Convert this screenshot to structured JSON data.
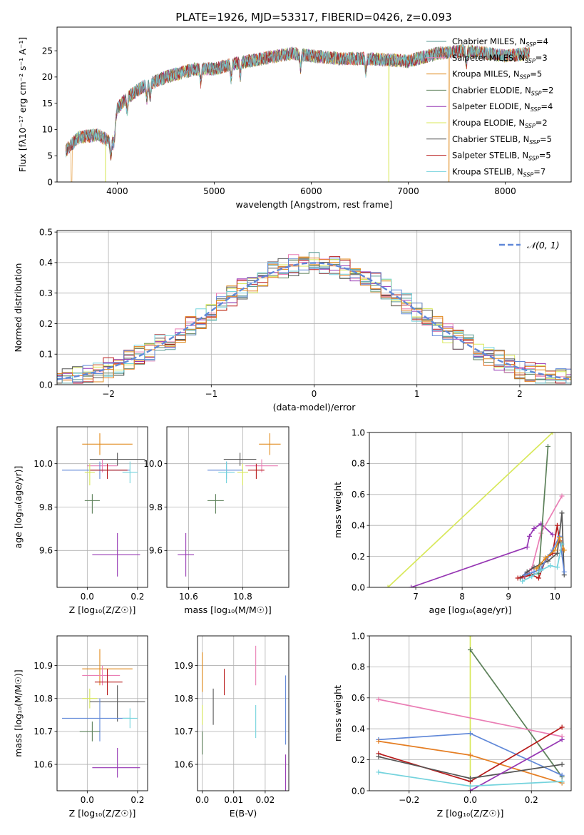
{
  "figure": {
    "title": "PLATE=1926, MJD=53317, FIBERID=0426, z=0.093"
  },
  "colors": {
    "chabrier_miles": "#5a9a93",
    "salpeter_miles": "#ea7eb5",
    "kroupa_miles": "#e08a1b",
    "chabrier_elodie": "#5b7f58",
    "salpeter_elodie": "#9636b3",
    "kroupa_elodie": "#d8e85a",
    "chabrier_stelib": "#555555",
    "salpeter_stelib": "#b81b1b",
    "kroupa_stelib": "#74d3dd",
    "blue": "#6088d8",
    "orange": "#e57e23"
  },
  "chart_data": [
    {
      "id": "spectrum",
      "type": "line",
      "xlabel": "wavelength [Angstrom, rest frame]",
      "ylabel": "Flux [fλ10⁻¹⁷ erg cm⁻² s⁻¹ A⁻¹]",
      "xlim": [
        3380,
        8680
      ],
      "ylim": [
        0,
        29.5
      ],
      "xticks": [
        4000,
        5000,
        6000,
        7000,
        8000
      ],
      "yticks": [
        0,
        5,
        10,
        15,
        20,
        25
      ],
      "legend": [
        {
          "base": "Chabrier MILES, N",
          "sub": "SSP",
          "tail": "=4"
        },
        {
          "base": "Salpeter MILES, N",
          "sub": "SSP",
          "tail": "=3"
        },
        {
          "base": "Kroupa MILES, N",
          "sub": "SSP",
          "tail": "=5"
        },
        {
          "base": "Chabrier ELODIE, N",
          "sub": "SSP",
          "tail": "=2"
        },
        {
          "base": "Salpeter ELODIE, N",
          "sub": "SSP",
          "tail": "=4"
        },
        {
          "base": "Kroupa ELODIE, N",
          "sub": "SSP",
          "tail": "=2"
        },
        {
          "base": "Chabrier STELIB, N",
          "sub": "SSP",
          "tail": "=5"
        },
        {
          "base": "Salpeter STELIB, N",
          "sub": "SSP",
          "tail": "=5"
        },
        {
          "base": "Kroupa STELIB, N",
          "sub": "SSP",
          "tail": "=7"
        }
      ],
      "legend_placement": "upper-right",
      "continuum": [
        [
          3470,
          6.0
        ],
        [
          3600,
          8.5
        ],
        [
          3800,
          9.0
        ],
        [
          3950,
          7.5
        ],
        [
          4000,
          14.0
        ],
        [
          4100,
          16.0
        ],
        [
          4250,
          18.0
        ],
        [
          4500,
          20.0
        ],
        [
          4800,
          21.5
        ],
        [
          5000,
          21.5
        ],
        [
          5200,
          22.5
        ],
        [
          5500,
          23.5
        ],
        [
          5800,
          24.5
        ],
        [
          6000,
          24.0
        ],
        [
          6300,
          23.5
        ],
        [
          6600,
          23.5
        ],
        [
          7000,
          23.0
        ],
        [
          7300,
          24.5
        ],
        [
          7600,
          25.0
        ],
        [
          8000,
          24.0
        ],
        [
          8250,
          24.5
        ]
      ]
    },
    {
      "id": "residuals",
      "type": "histogram",
      "xlabel": "(data-model)/error",
      "ylabel": "Normed distribution",
      "xlim": [
        -2.5,
        2.5
      ],
      "ylim": [
        0,
        0.505
      ],
      "xticks": [
        -2,
        -1,
        0,
        1,
        2
      ],
      "yticks": [
        0.0,
        0.1,
        0.2,
        0.3,
        0.4,
        0.5
      ],
      "legend": [
        "𝒩(0, 1)"
      ],
      "legend_placement": "upper-right",
      "grid": true,
      "bin_width": 0.1
    },
    {
      "id": "age-vs-Z",
      "type": "scatter",
      "xlabel": "Z [log₁₀(Z/Z☉)]",
      "ylabel": "age  [log₁₀(age/yr)]",
      "xlim": [
        -0.12,
        0.24
      ],
      "ylim": [
        9.43,
        10.17
      ],
      "xticks": [
        0.0,
        0.2
      ],
      "yticks": [
        9.6,
        9.8,
        10.0
      ],
      "grid": true,
      "points": [
        {
          "series": "kroupa_miles",
          "x": 0.05,
          "y": 10.09,
          "xe": [
            0.07,
            0.13
          ],
          "ye": [
            0.05,
            0.05
          ]
        },
        {
          "series": "chabrier_stelib",
          "x": 0.12,
          "y": 10.02,
          "xe": [
            0.11,
            0.11
          ],
          "ye": [
            0.03,
            0.03
          ]
        },
        {
          "series": "salpeter_miles",
          "x": 0.06,
          "y": 9.99,
          "xe": [
            0.06,
            0.06
          ],
          "ye": [
            0.03,
            0.03
          ]
        },
        {
          "series": "blue",
          "x": 0.05,
          "y": 9.97,
          "xe": [
            0.15,
            0.12
          ],
          "ye": [
            0.04,
            0.04
          ]
        },
        {
          "series": "salpeter_stelib",
          "x": 0.08,
          "y": 9.97,
          "xe": [
            0.07,
            0.08
          ],
          "ye": [
            0.04,
            0.03
          ]
        },
        {
          "series": "kroupa_elodie",
          "x": 0.01,
          "y": 9.96,
          "xe": [
            0.02,
            0.02
          ],
          "ye": [
            0.06,
            0.04
          ]
        },
        {
          "series": "kroupa_stelib",
          "x": 0.17,
          "y": 9.96,
          "xe": [
            0.03,
            0.03
          ],
          "ye": [
            0.05,
            0.05
          ]
        },
        {
          "series": "chabrier_elodie",
          "x": 0.02,
          "y": 9.83,
          "xe": [
            0.03,
            0.03
          ],
          "ye": [
            0.06,
            0.03
          ]
        },
        {
          "series": "salpeter_elodie",
          "x": 0.12,
          "y": 9.58,
          "xe": [
            0.1,
            0.09
          ],
          "ye": [
            0.1,
            0.1
          ]
        }
      ]
    },
    {
      "id": "age-vs-mass",
      "type": "scatter",
      "xlabel": "mass [log₁₀(M/M☉)]",
      "ylabel": "",
      "xlim": [
        10.52,
        10.97
      ],
      "ylim": [
        9.43,
        10.17
      ],
      "xticks": [
        10.6,
        10.8
      ],
      "yticks": [
        9.6,
        9.8,
        10.0
      ],
      "grid": true,
      "points": [
        {
          "series": "kroupa_miles",
          "x": 10.9,
          "y": 10.09,
          "xe": [
            0.04,
            0.04
          ],
          "ye": [
            0.05,
            0.05
          ]
        },
        {
          "series": "chabrier_stelib",
          "x": 10.79,
          "y": 10.02,
          "xe": [
            0.06,
            0.06
          ],
          "ye": [
            0.03,
            0.03
          ]
        },
        {
          "series": "salpeter_miles",
          "x": 10.87,
          "y": 9.99,
          "xe": [
            0.06,
            0.06
          ],
          "ye": [
            0.03,
            0.03
          ]
        },
        {
          "series": "blue",
          "x": 10.74,
          "y": 9.97,
          "xe": [
            0.07,
            0.06
          ],
          "ye": [
            0.04,
            0.04
          ]
        },
        {
          "series": "salpeter_stelib",
          "x": 10.85,
          "y": 9.97,
          "xe": [
            0.03,
            0.03
          ],
          "ye": [
            0.04,
            0.03
          ]
        },
        {
          "series": "kroupa_elodie",
          "x": 10.8,
          "y": 9.96,
          "xe": [
            0.02,
            0.02
          ],
          "ye": [
            0.06,
            0.04
          ]
        },
        {
          "series": "kroupa_stelib",
          "x": 10.74,
          "y": 9.96,
          "xe": [
            0.03,
            0.03
          ],
          "ye": [
            0.05,
            0.05
          ]
        },
        {
          "series": "chabrier_elodie",
          "x": 10.7,
          "y": 9.83,
          "xe": [
            0.03,
            0.03
          ],
          "ye": [
            0.06,
            0.03
          ]
        },
        {
          "series": "salpeter_elodie",
          "x": 10.59,
          "y": 9.58,
          "xe": [
            0.03,
            0.03
          ],
          "ye": [
            0.1,
            0.1
          ]
        }
      ]
    },
    {
      "id": "weight-vs-age",
      "type": "line",
      "xlabel": "age  [log₁₀(age/yr)]",
      "ylabel": "mass weight",
      "xlim": [
        6.0,
        10.35
      ],
      "ylim": [
        0.0,
        1.0
      ],
      "xticks": [
        7,
        8,
        9,
        10
      ],
      "yticks": [
        0.0,
        0.2,
        0.4,
        0.6,
        0.8,
        1.0
      ],
      "grid": true,
      "series": [
        {
          "series": "kroupa_elodie",
          "x": [
            6.4,
            9.95
          ],
          "y": [
            0.0,
            1.0
          ]
        },
        {
          "series": "salpeter_elodie",
          "x": [
            6.9,
            9.4,
            9.45,
            9.55,
            9.7,
            9.95
          ],
          "y": [
            0.0,
            0.26,
            0.33,
            0.38,
            0.41,
            0.34
          ]
        },
        {
          "series": "salpeter_miles",
          "x": [
            9.3,
            9.5,
            9.7,
            10.15
          ],
          "y": [
            0.06,
            0.12,
            0.35,
            0.59
          ]
        },
        {
          "series": "chabrier_elodie",
          "x": [
            9.45,
            9.65,
            9.85
          ],
          "y": [
            0.08,
            0.09,
            0.91
          ]
        },
        {
          "series": "chabrier_stelib",
          "x": [
            9.25,
            9.4,
            9.55,
            9.7,
            9.85,
            10.05,
            10.15,
            10.2
          ],
          "y": [
            0.06,
            0.1,
            0.13,
            0.15,
            0.17,
            0.22,
            0.48,
            0.08
          ]
        },
        {
          "series": "salpeter_stelib",
          "x": [
            9.2,
            9.35,
            9.5,
            9.65,
            9.8,
            9.95,
            10.05,
            10.1,
            10.15
          ],
          "y": [
            0.06,
            0.07,
            0.08,
            0.06,
            0.18,
            0.22,
            0.4,
            0.3,
            0.24
          ]
        },
        {
          "series": "blue",
          "x": [
            9.35,
            9.55,
            9.7,
            9.85,
            9.95,
            10.1,
            10.2
          ],
          "y": [
            0.08,
            0.1,
            0.12,
            0.2,
            0.24,
            0.33,
            0.1
          ]
        },
        {
          "series": "kroupa_miles",
          "x": [
            9.6,
            9.8,
            10.0,
            10.1,
            10.2
          ],
          "y": [
            0.12,
            0.19,
            0.24,
            0.32,
            0.24
          ]
        },
        {
          "series": "kroupa_stelib",
          "x": [
            9.3,
            9.5,
            9.7,
            9.9,
            10.05,
            10.15
          ],
          "y": [
            0.04,
            0.07,
            0.11,
            0.14,
            0.13,
            0.28
          ]
        }
      ]
    },
    {
      "id": "mass-vs-Z",
      "type": "scatter",
      "xlabel": "Z [log₁₀(Z/Z☉)]",
      "ylabel": "mass [log₁₀(M/M☉)]",
      "xlim": [
        -0.12,
        0.24
      ],
      "ylim": [
        10.52,
        10.99
      ],
      "xticks": [
        0.0,
        0.2
      ],
      "yticks": [
        10.6,
        10.7,
        10.8,
        10.9
      ],
      "grid": true,
      "points": [
        {
          "series": "kroupa_miles",
          "x": 0.05,
          "y": 10.89,
          "xe": [
            0.07,
            0.13
          ],
          "ye": [
            0.05,
            0.06
          ]
        },
        {
          "series": "salpeter_miles",
          "x": 0.06,
          "y": 10.87,
          "xe": [
            0.08,
            0.07
          ],
          "ye": [
            0.03,
            0.03
          ]
        },
        {
          "series": "salpeter_stelib",
          "x": 0.08,
          "y": 10.85,
          "xe": [
            0.05,
            0.06
          ],
          "ye": [
            0.04,
            0.04
          ]
        },
        {
          "series": "kroupa_elodie",
          "x": 0.01,
          "y": 10.8,
          "xe": [
            0.03,
            0.03
          ],
          "ye": [
            0.03,
            0.03
          ]
        },
        {
          "series": "chabrier_stelib",
          "x": 0.12,
          "y": 10.79,
          "xe": [
            0.11,
            0.11
          ],
          "ye": [
            0.06,
            0.05
          ]
        },
        {
          "series": "blue",
          "x": 0.05,
          "y": 10.74,
          "xe": [
            0.15,
            0.12
          ],
          "ye": [
            0.07,
            0.06
          ]
        },
        {
          "series": "kroupa_stelib",
          "x": 0.17,
          "y": 10.74,
          "xe": [
            0.03,
            0.03
          ],
          "ye": [
            0.03,
            0.03
          ]
        },
        {
          "series": "chabrier_elodie",
          "x": 0.02,
          "y": 10.7,
          "xe": [
            0.05,
            0.03
          ],
          "ye": [
            0.03,
            0.03
          ]
        },
        {
          "series": "salpeter_elodie",
          "x": 0.12,
          "y": 10.59,
          "xe": [
            0.1,
            0.09
          ],
          "ye": [
            0.03,
            0.06
          ]
        }
      ]
    },
    {
      "id": "mass-vs-EBV",
      "type": "scatter",
      "xlabel": "E(B-V)",
      "ylabel": "",
      "xlim": [
        -0.0015,
        0.0275
      ],
      "ylim": [
        10.52,
        10.99
      ],
      "xticks": [
        0.0,
        0.01,
        0.02
      ],
      "yticks": [
        10.6,
        10.7,
        10.8,
        10.9
      ],
      "grid": true,
      "points": [
        {
          "series": "kroupa_miles",
          "x": 0.0,
          "y": 10.88,
          "ye": [
            0.06,
            0.06
          ]
        },
        {
          "series": "salpeter_miles",
          "x": 0.017,
          "y": 10.9,
          "ye": [
            0.06,
            0.06
          ]
        },
        {
          "series": "salpeter_stelib",
          "x": 0.007,
          "y": 10.85,
          "ye": [
            0.04,
            0.04
          ]
        },
        {
          "series": "chabrier_stelib",
          "x": 0.0035,
          "y": 10.78,
          "ye": [
            0.06,
            0.05
          ]
        },
        {
          "series": "kroupa_elodie",
          "x": 0.0,
          "y": 10.75,
          "ye": [
            0.03,
            0.03
          ]
        },
        {
          "series": "chabrier_elodie",
          "x": 0.0,
          "y": 10.67,
          "ye": [
            0.04,
            0.03
          ]
        },
        {
          "series": "kroupa_stelib",
          "x": 0.017,
          "y": 10.73,
          "ye": [
            0.05,
            0.05
          ]
        },
        {
          "series": "blue",
          "x": 0.0265,
          "y": 10.76,
          "ye": [
            0.1,
            0.11
          ]
        },
        {
          "series": "salpeter_elodie",
          "x": 0.0265,
          "y": 10.58,
          "ye": [
            0.07,
            0.05
          ]
        }
      ]
    },
    {
      "id": "weight-vs-Z",
      "type": "line",
      "xlabel": "Z [log₁₀(Z/Z☉)]",
      "ylabel": "mass weight",
      "xlim": [
        -0.33,
        0.33
      ],
      "ylim": [
        0.0,
        1.0
      ],
      "xticks": [
        -0.2,
        0.0,
        0.2
      ],
      "yticks": [
        0.0,
        0.2,
        0.4,
        0.6,
        0.8,
        1.0
      ],
      "grid": true,
      "series": [
        {
          "series": "kroupa_elodie",
          "x": [
            0.0,
            0.0
          ],
          "y": [
            0.0,
            1.0
          ]
        },
        {
          "series": "chabrier_elodie",
          "x": [
            0.0,
            0.3
          ],
          "y": [
            0.91,
            0.09
          ]
        },
        {
          "series": "salpeter_miles",
          "x": [
            -0.3,
            0.3
          ],
          "y": [
            0.59,
            0.35
          ]
        },
        {
          "series": "blue",
          "x": [
            -0.3,
            0.0,
            0.3
          ],
          "y": [
            0.33,
            0.37,
            0.1
          ]
        },
        {
          "series": "orange",
          "x": [
            -0.3,
            0.0,
            0.3
          ],
          "y": [
            0.32,
            0.23,
            0.05
          ]
        },
        {
          "series": "salpeter_stelib",
          "x": [
            -0.3,
            0.0,
            0.3
          ],
          "y": [
            0.24,
            0.06,
            0.41
          ]
        },
        {
          "series": "chabrier_stelib",
          "x": [
            -0.3,
            0.0,
            0.3
          ],
          "y": [
            0.22,
            0.08,
            0.17
          ]
        },
        {
          "series": "salpeter_elodie",
          "x": [
            0.0,
            0.3
          ],
          "y": [
            0.0,
            0.33
          ]
        },
        {
          "series": "kroupa_stelib",
          "x": [
            -0.3,
            0.0,
            0.3
          ],
          "y": [
            0.12,
            0.03,
            0.06
          ]
        }
      ]
    }
  ]
}
